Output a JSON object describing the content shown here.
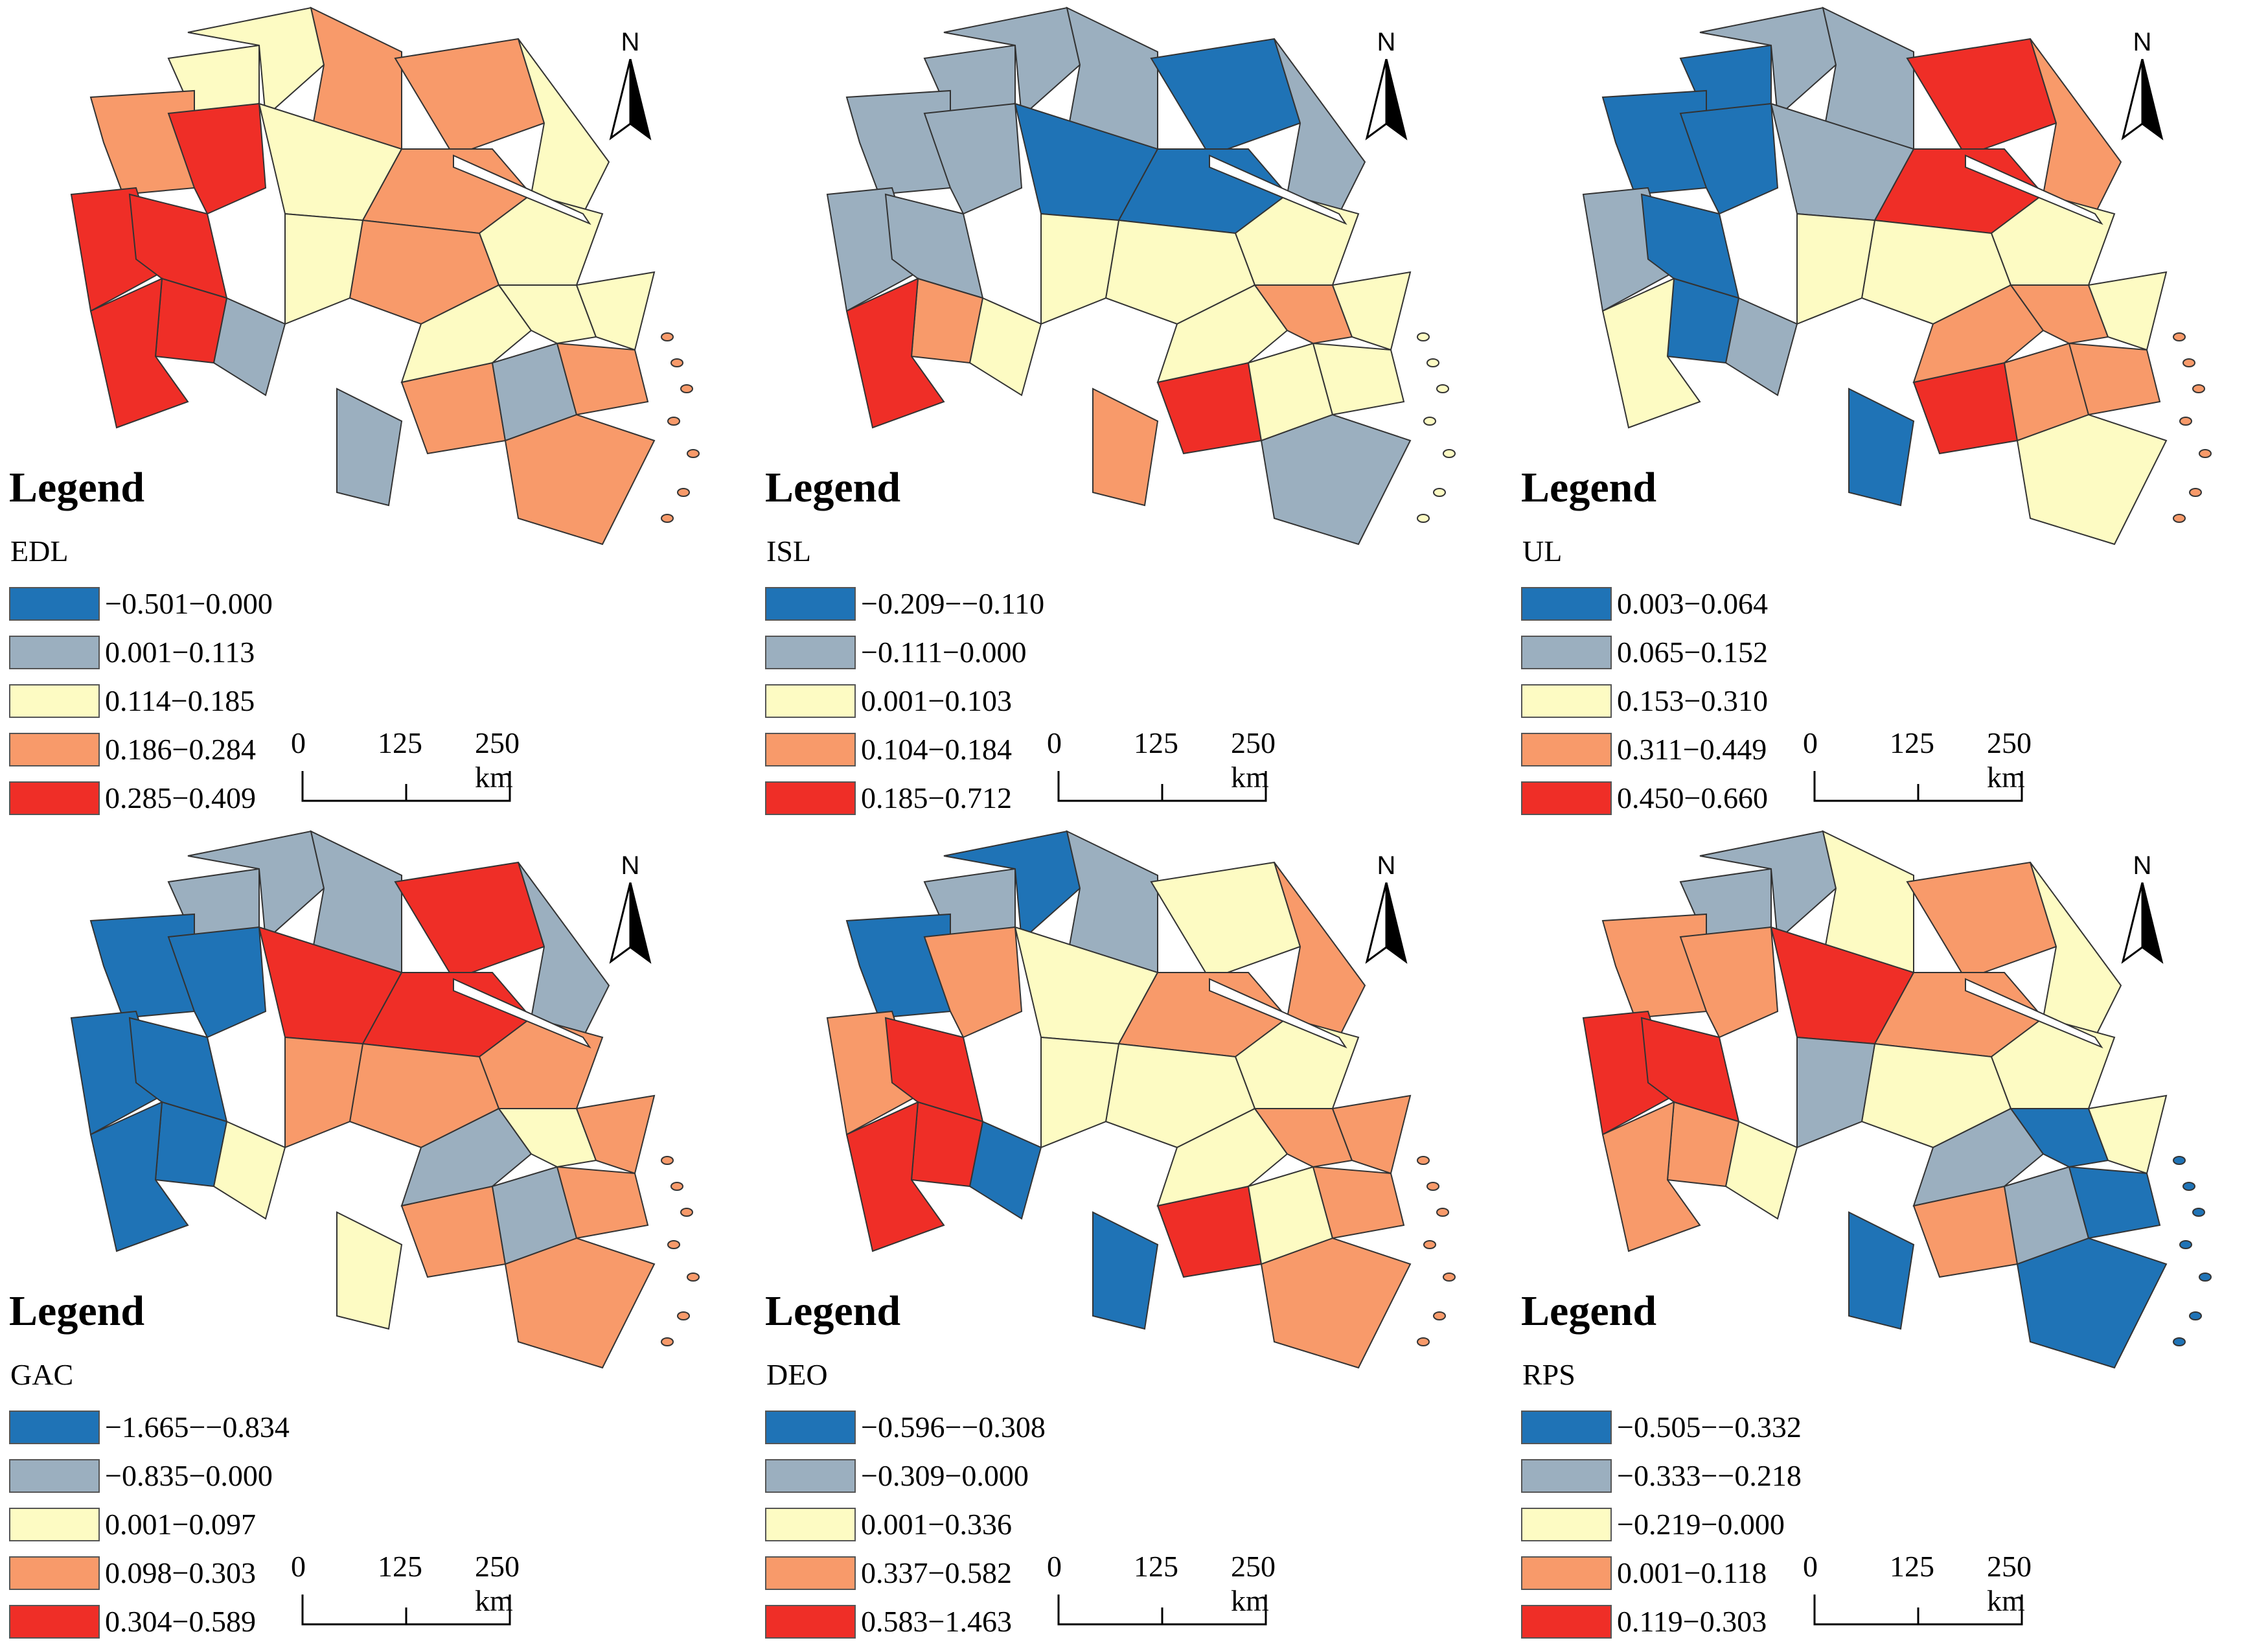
{
  "panels": [
    {
      "id": "edl",
      "title": "Legend",
      "variable": "EDL",
      "classes": [
        {
          "label": "−0.501−0.000",
          "color": "#1f73b6"
        },
        {
          "label": "0.001−0.113",
          "color": "#9bafbf"
        },
        {
          "label": "0.114−0.185",
          "color": "#fdfbc3"
        },
        {
          "label": "0.186−0.284",
          "color": "#f89a6a"
        },
        {
          "label": "0.285−0.409",
          "color": "#ef2e27"
        }
      ],
      "regions": [
        2,
        2,
        3,
        3,
        4,
        4,
        4,
        2,
        3,
        3,
        2,
        2,
        3,
        2,
        1,
        1,
        4,
        4,
        3,
        2,
        1,
        2,
        3,
        3,
        2
      ]
    },
    {
      "id": "isl",
      "title": "Legend",
      "variable": "ISL",
      "classes": [
        {
          "label": "−0.209−−0.110",
          "color": "#1f73b6"
        },
        {
          "label": "−0.111−0.000",
          "color": "#9bafbf"
        },
        {
          "label": "0.001−0.103",
          "color": "#fdfbc3"
        },
        {
          "label": "0.104−0.184",
          "color": "#f89a6a"
        },
        {
          "label": "0.185−0.712",
          "color": "#ef2e27"
        }
      ],
      "regions": [
        1,
        1,
        1,
        1,
        1,
        1,
        1,
        0,
        0,
        0,
        1,
        2,
        2,
        2,
        2,
        3,
        3,
        4,
        4,
        2,
        2,
        3,
        2,
        1,
        2
      ]
    },
    {
      "id": "ul",
      "title": "Legend",
      "variable": "UL",
      "classes": [
        {
          "label": "0.003−0.064",
          "color": "#1f73b6"
        },
        {
          "label": "0.065−0.152",
          "color": "#9bafbf"
        },
        {
          "label": "0.153−0.310",
          "color": "#fdfbc3"
        },
        {
          "label": "0.311−0.449",
          "color": "#f89a6a"
        },
        {
          "label": "0.450−0.660",
          "color": "#ef2e27"
        }
      ],
      "regions": [
        0,
        1,
        1,
        0,
        0,
        1,
        0,
        1,
        4,
        4,
        3,
        2,
        2,
        2,
        1,
        0,
        0,
        2,
        4,
        3,
        3,
        3,
        3,
        2,
        2
      ]
    },
    {
      "id": "gac",
      "title": "Legend",
      "variable": "GAC",
      "classes": [
        {
          "label": "−1.665−−0.834",
          "color": "#1f73b6"
        },
        {
          "label": "−0.835−0.000",
          "color": "#9bafbf"
        },
        {
          "label": "0.001−0.097",
          "color": "#fdfbc3"
        },
        {
          "label": "0.098−0.303",
          "color": "#f89a6a"
        },
        {
          "label": "0.304−0.589",
          "color": "#ef2e27"
        }
      ],
      "regions": [
        1,
        1,
        1,
        0,
        0,
        0,
        0,
        4,
        4,
        4,
        1,
        3,
        3,
        3,
        2,
        2,
        0,
        0,
        3,
        1,
        1,
        2,
        3,
        3,
        3
      ]
    },
    {
      "id": "deo",
      "title": "Legend",
      "variable": "DEO",
      "classes": [
        {
          "label": "−0.596−−0.308",
          "color": "#1f73b6"
        },
        {
          "label": "−0.309−0.000",
          "color": "#9bafbf"
        },
        {
          "label": "0.001−0.336",
          "color": "#fdfbc3"
        },
        {
          "label": "0.337−0.582",
          "color": "#f89a6a"
        },
        {
          "label": "0.583−1.463",
          "color": "#ef2e27"
        }
      ],
      "regions": [
        1,
        0,
        1,
        0,
        3,
        3,
        4,
        2,
        2,
        3,
        3,
        2,
        2,
        2,
        0,
        0,
        4,
        4,
        4,
        2,
        2,
        3,
        3,
        3,
        3
      ]
    },
    {
      "id": "rps",
      "title": "Legend",
      "variable": "RPS",
      "classes": [
        {
          "label": "−0.505−−0.332",
          "color": "#1f73b6"
        },
        {
          "label": "−0.333−−0.218",
          "color": "#9bafbf"
        },
        {
          "label": "−0.219−0.000",
          "color": "#fdfbc3"
        },
        {
          "label": "0.001−0.118",
          "color": "#f89a6a"
        },
        {
          "label": "0.119−0.303",
          "color": "#ef2e27"
        }
      ],
      "regions": [
        1,
        1,
        2,
        3,
        3,
        4,
        4,
        4,
        3,
        3,
        2,
        2,
        2,
        1,
        2,
        0,
        3,
        3,
        3,
        1,
        1,
        0,
        0,
        0,
        2
      ]
    }
  ],
  "scale": {
    "ticks": [
      "0",
      "125",
      "250 km"
    ]
  },
  "north": {
    "label": "N"
  }
}
